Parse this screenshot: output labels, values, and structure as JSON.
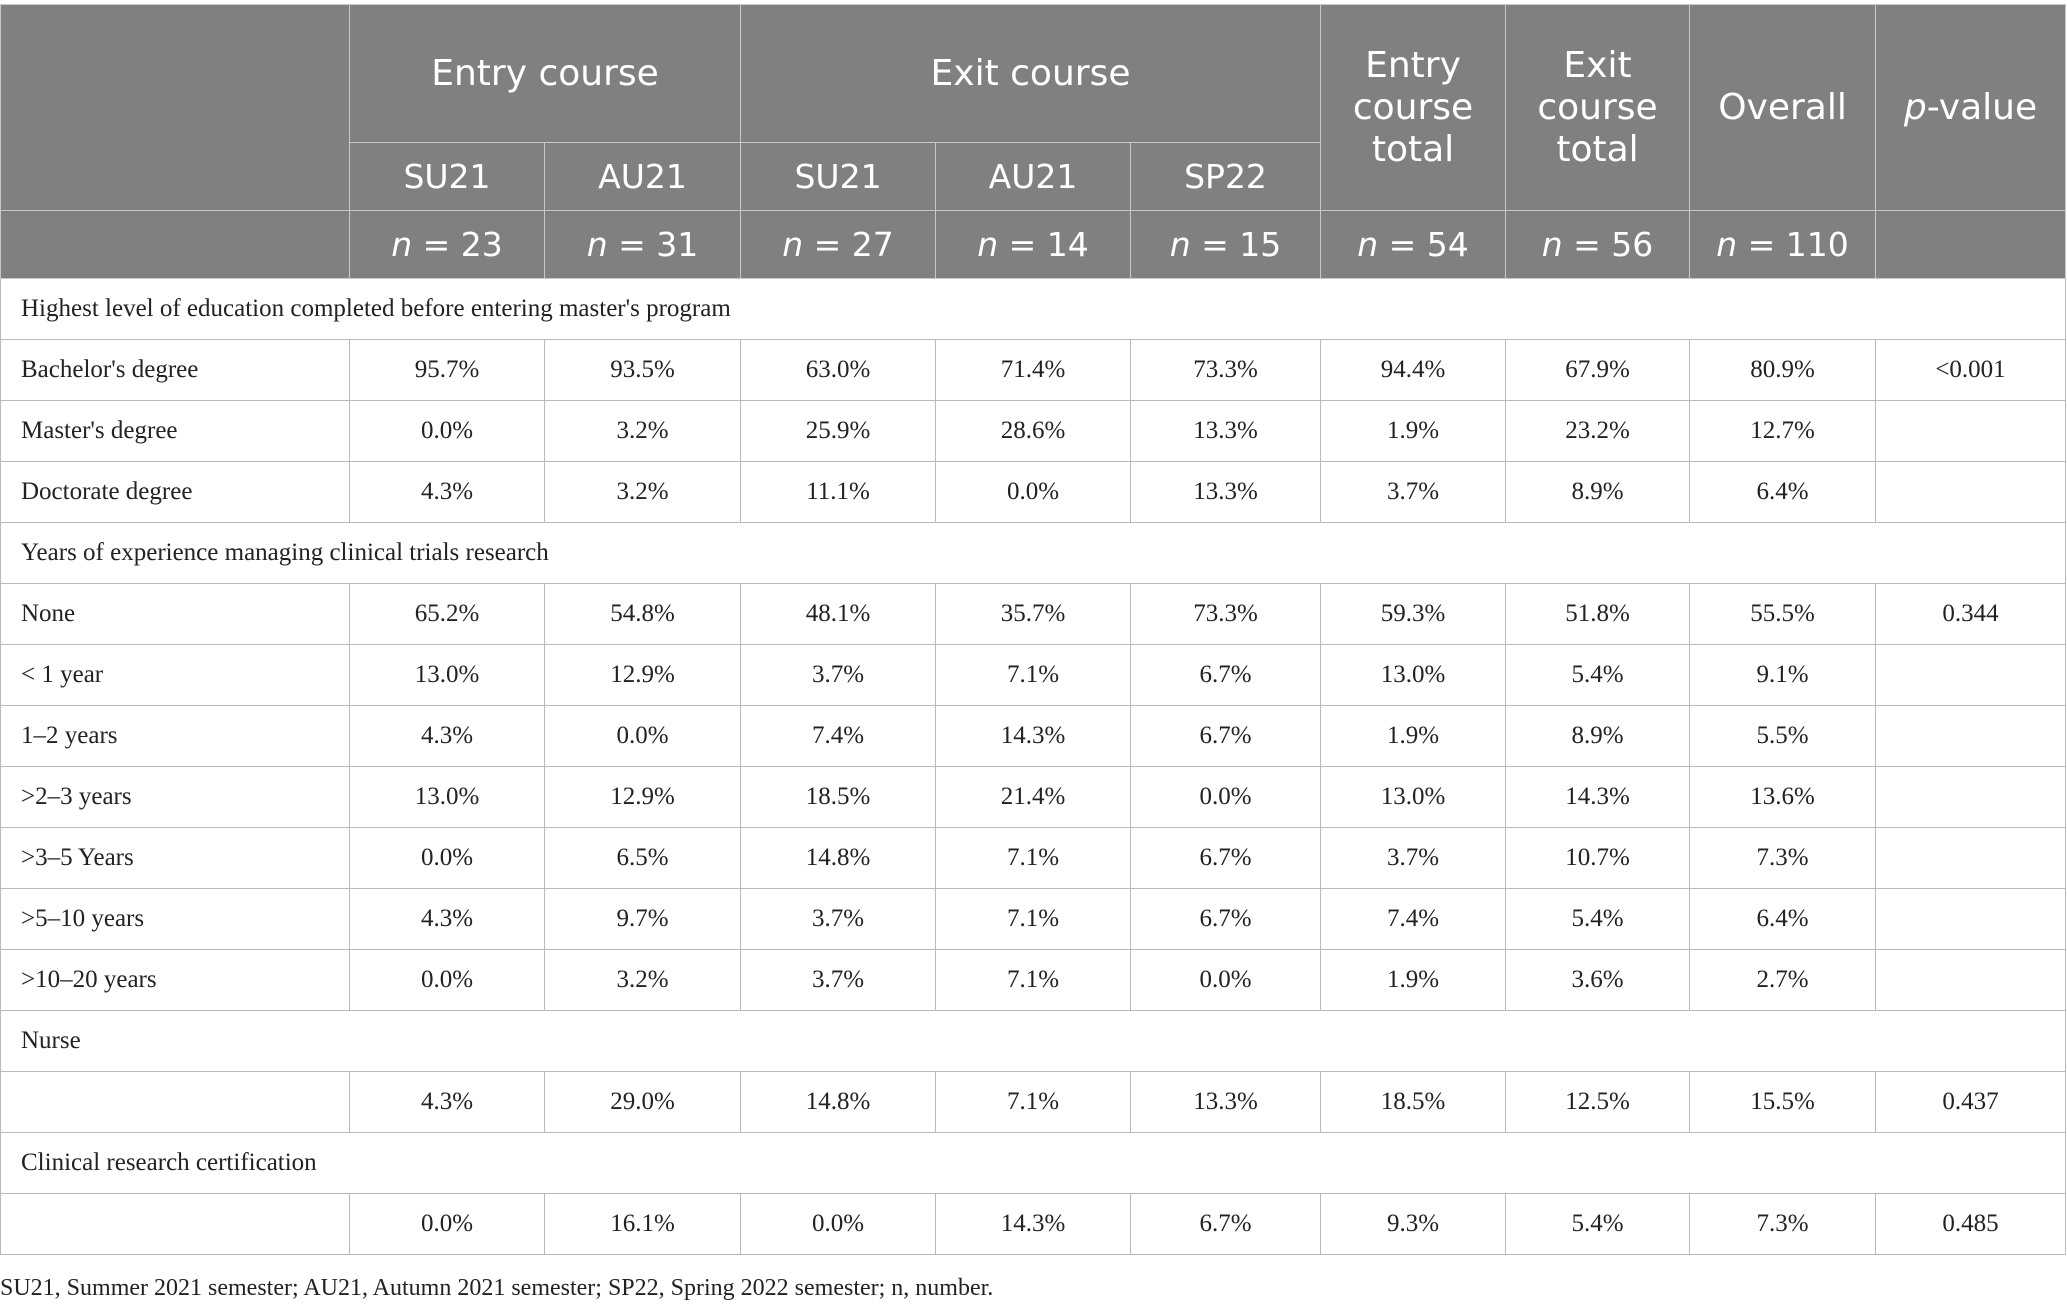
{
  "header": {
    "entry_course": "Entry course",
    "exit_course": "Exit course",
    "entry_course_total": "Entry course total",
    "exit_course_total": "Exit course total",
    "overall": "Overall",
    "p_value_italic": "p",
    "p_value_rest": "-value",
    "semesters": [
      "SU21",
      "AU21",
      "SU21",
      "AU21",
      "SP22"
    ],
    "n_values": [
      "23",
      "31",
      "27",
      "14",
      "15",
      "54",
      "56",
      "110"
    ]
  },
  "sections": [
    {
      "title": "Highest level of education completed before entering master's program",
      "rows": [
        {
          "label": "Bachelor's degree",
          "values": [
            "95.7%",
            "93.5%",
            "63.0%",
            "71.4%",
            "73.3%",
            "94.4%",
            "67.9%",
            "80.9%",
            "<0.001"
          ]
        },
        {
          "label": "Master's degree",
          "values": [
            "0.0%",
            "3.2%",
            "25.9%",
            "28.6%",
            "13.3%",
            "1.9%",
            "23.2%",
            "12.7%",
            ""
          ]
        },
        {
          "label": "Doctorate degree",
          "values": [
            "4.3%",
            "3.2%",
            "11.1%",
            "0.0%",
            "13.3%",
            "3.7%",
            "8.9%",
            "6.4%",
            ""
          ]
        }
      ]
    },
    {
      "title": "Years of experience managing clinical trials research",
      "rows": [
        {
          "label": "None",
          "values": [
            "65.2%",
            "54.8%",
            "48.1%",
            "35.7%",
            "73.3%",
            "59.3%",
            "51.8%",
            "55.5%",
            "0.344"
          ]
        },
        {
          "label": "< 1 year",
          "values": [
            "13.0%",
            "12.9%",
            "3.7%",
            "7.1%",
            "6.7%",
            "13.0%",
            "5.4%",
            "9.1%",
            ""
          ]
        },
        {
          "label": "1–2 years",
          "values": [
            "4.3%",
            "0.0%",
            "7.4%",
            "14.3%",
            "6.7%",
            "1.9%",
            "8.9%",
            "5.5%",
            ""
          ]
        },
        {
          "label": ">2–3 years",
          "values": [
            "13.0%",
            "12.9%",
            "18.5%",
            "21.4%",
            "0.0%",
            "13.0%",
            "14.3%",
            "13.6%",
            ""
          ]
        },
        {
          "label": ">3–5 Years",
          "values": [
            "0.0%",
            "6.5%",
            "14.8%",
            "7.1%",
            "6.7%",
            "3.7%",
            "10.7%",
            "7.3%",
            ""
          ]
        },
        {
          "label": ">5–10 years",
          "values": [
            "4.3%",
            "9.7%",
            "3.7%",
            "7.1%",
            "6.7%",
            "7.4%",
            "5.4%",
            "6.4%",
            ""
          ]
        },
        {
          "label": ">10–20 years",
          "values": [
            "0.0%",
            "3.2%",
            "3.7%",
            "7.1%",
            "0.0%",
            "1.9%",
            "3.6%",
            "2.7%",
            ""
          ]
        }
      ]
    },
    {
      "title": "Nurse",
      "rows": [
        {
          "label": "",
          "values": [
            "4.3%",
            "29.0%",
            "14.8%",
            "7.1%",
            "13.3%",
            "18.5%",
            "12.5%",
            "15.5%",
            "0.437"
          ]
        }
      ]
    },
    {
      "title": "Clinical research certification",
      "rows": [
        {
          "label": "",
          "values": [
            "0.0%",
            "16.1%",
            "0.0%",
            "14.3%",
            "6.7%",
            "9.3%",
            "5.4%",
            "7.3%",
            "0.485"
          ]
        }
      ]
    }
  ],
  "footnote": "SU21, Summer 2021 semester; AU21, Autumn 2021 semester; SP22, Spring 2022 semester; n, number."
}
